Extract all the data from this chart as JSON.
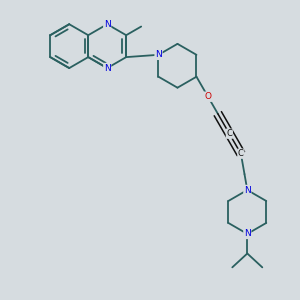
{
  "bg_color": "#d6dce0",
  "bond_color": "#2a6060",
  "N_color": "#0000dd",
  "O_color": "#cc0000",
  "C_color": "#111111",
  "lw": 1.3,
  "fs": 6.5,
  "r": 0.095,
  "xlim": [
    -0.55,
    0.65
  ],
  "ylim": [
    -0.75,
    0.55
  ]
}
